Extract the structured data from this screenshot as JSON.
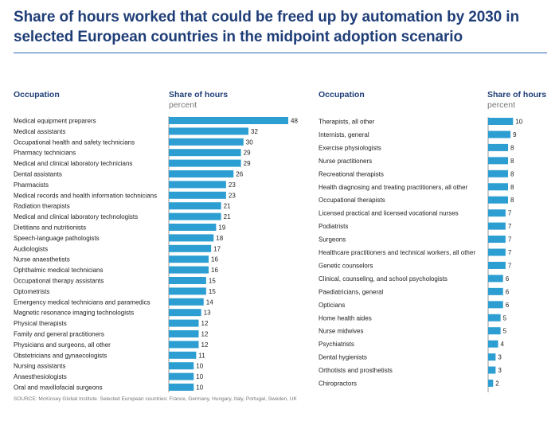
{
  "chart_data": {
    "type": "bar",
    "orientation": "horizontal",
    "title": "Share of hours worked that could be freed up by automation by 2030 in selected European countries in the midpoint adoption scenario",
    "column_header_category": "Occupation",
    "column_header_value": "Share of hours",
    "column_header_unit": "percent",
    "panels": [
      {
        "name": "left",
        "categories": [
          "Medical equipment preparers",
          "Medical assistants",
          "Occupational health and safety technicians",
          "Pharmacy technicians",
          "Medical and clinical laboratory technicians",
          "Dental assistants",
          "Pharmacists",
          "Medical records and health information technicians",
          "Radiation therapists",
          "Medical and clinical laboratory technologists",
          "Dietitians and nutritionists",
          "Speech-language pathologists",
          "Audiologists",
          "Nurse anaesthetists",
          "Ophthalmic medical technicians",
          "Occupational therapy assistants",
          "Optometrists",
          "Emergency medical technicians and paramedics",
          "Magnetic resonance imaging technologists",
          "Physical therapists",
          "Family and general practitioners",
          "Physicians and surgeons, all other",
          "Obstetricians and gynaecologists",
          "Nursing assistants",
          "Anaesthesiologists",
          "Oral and maxillofacial surgeons"
        ],
        "values": [
          48,
          32,
          30,
          29,
          29,
          26,
          23,
          23,
          21,
          21,
          19,
          18,
          17,
          16,
          16,
          15,
          15,
          14,
          13,
          12,
          12,
          12,
          11,
          10,
          10,
          10
        ]
      },
      {
        "name": "right",
        "categories": [
          "Therapists, all other",
          "Internists, general",
          "Exercise physiologists",
          "Nurse practitioners",
          "Recreational therapists",
          "Health diagnosing and treating practitioners, all other",
          "Occupational therapists",
          "Licensed practical and licensed vocational nurses",
          "Podiatrists",
          "Surgeons",
          "Healthcare practitioners and technical workers, all other",
          "Genetic counselors",
          "Clinical, counseling, and school psychologists",
          "Paediatricians, general",
          "Opticians",
          "Home health aides",
          "Nurse midwives",
          "Psychiatrists",
          "Dental hygienists",
          "Orthotists and prosthetists",
          "Chiropractors"
        ],
        "values": [
          10,
          9,
          8,
          8,
          8,
          8,
          8,
          7,
          7,
          7,
          7,
          7,
          6,
          6,
          6,
          5,
          5,
          4,
          3,
          3,
          2
        ]
      }
    ],
    "xlim": [
      0,
      48
    ],
    "bar_color": "#2d9ed2"
  },
  "source": "SOURCE: McKinsey Global Institute. Selected European countries: France, Germany, Hungary, Italy, Portugal, Sweden, UK"
}
